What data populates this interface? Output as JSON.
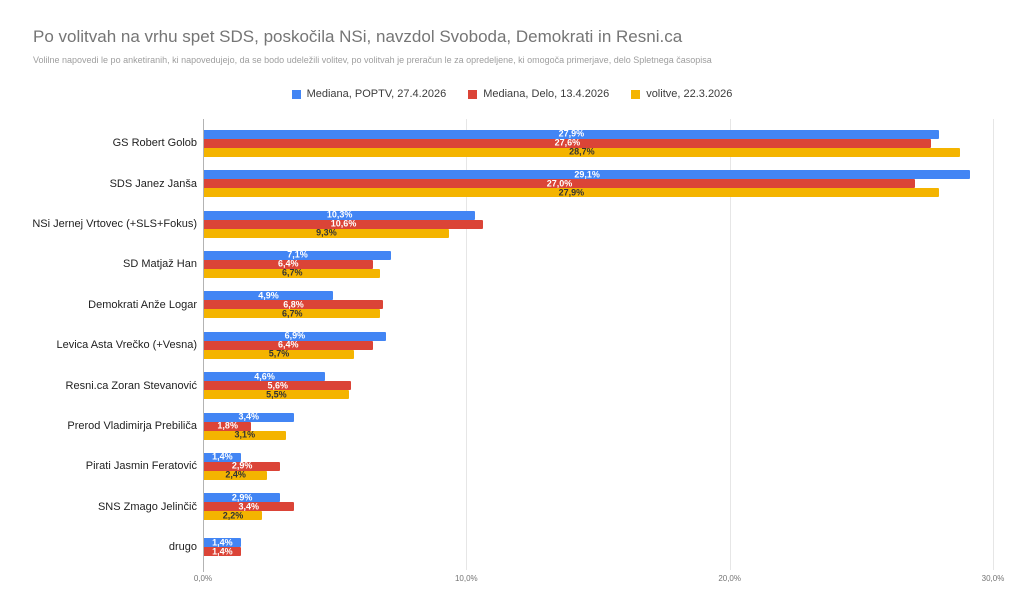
{
  "chart_data": {
    "type": "bar",
    "orientation": "horizontal",
    "title": "Po volitvah na vrhu spet SDS, poskočila NSi, navzdol Svoboda, Demokrati in Resni.ca",
    "subtitle": "Volilne napovedi le po anketiranih, ki napovedujejo, da se bodo udeležili volitev, po volitvah je preračun le za opredeljene, ki omogoča primerjave, delo Spletnega časopisa",
    "categories": [
      "GS Robert Golob",
      "SDS Janez Janša",
      "NSi Jernej Vrtovec (+SLS+Fokus)",
      "SD Matjaž Han",
      "Demokrati Anže Logar",
      "Levica Asta Vrečko (+Vesna)",
      "Resni.ca Zoran Stevanović",
      "Prerod Vladimirja Prebiliča",
      "Pirati Jasmin Feratović",
      "SNS Zmago Jelinčič",
      "drugo"
    ],
    "series": [
      {
        "name": "Mediana, POPTV, 27.4.2026",
        "color": "#4285F4",
        "label_color": "#ffffff",
        "values": [
          27.9,
          29.1,
          10.3,
          7.1,
          4.9,
          6.9,
          4.6,
          3.4,
          1.4,
          2.9,
          1.4
        ]
      },
      {
        "name": "Mediana, Delo, 13.4.2026",
        "color": "#DB4437",
        "label_color": "#ffffff",
        "values": [
          27.6,
          27.0,
          10.6,
          6.4,
          6.8,
          6.4,
          5.6,
          1.8,
          2.9,
          3.4,
          1.4
        ]
      },
      {
        "name": "volitve, 22.3.2026",
        "color": "#F4B400",
        "label_color": "#333333",
        "values": [
          28.7,
          27.9,
          9.3,
          6.7,
          6.7,
          5.7,
          5.5,
          3.1,
          2.4,
          2.2,
          null
        ]
      }
    ],
    "xlabel": "",
    "ylabel": "",
    "xlim": [
      0,
      30
    ],
    "x_ticks": [
      {
        "value": 0,
        "label": "0,0%"
      },
      {
        "value": 10,
        "label": "10,0%"
      },
      {
        "value": 20,
        "label": "20,0%"
      },
      {
        "value": 30,
        "label": "30,0%"
      }
    ],
    "grid": true,
    "legend_position": "top",
    "value_label_format": "comma-decimal-percent"
  }
}
